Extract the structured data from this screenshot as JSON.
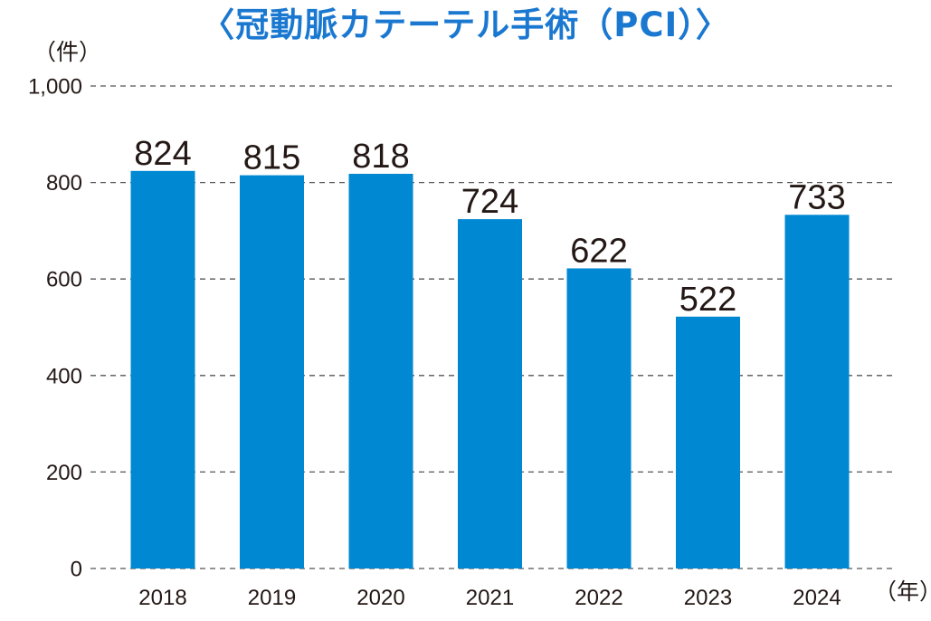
{
  "chart_data": {
    "type": "bar",
    "title": "〈冠動脈カテーテル手術（PCI）〉",
    "y_unit": "（件）",
    "x_unit": "（年）",
    "categories": [
      "2018",
      "2019",
      "2020",
      "2021",
      "2022",
      "2023",
      "2024"
    ],
    "values": [
      824,
      815,
      818,
      724,
      622,
      522,
      733
    ],
    "data_labels": [
      "824",
      "815",
      "818",
      "724",
      "622",
      "522",
      "733"
    ],
    "ylim": [
      0,
      1000
    ],
    "y_ticks": [
      0,
      200,
      400,
      600,
      800,
      1000
    ],
    "y_tick_labels": [
      "0",
      "200",
      "400",
      "600",
      "800",
      "1,000"
    ],
    "grid": "dashed horizontal",
    "legend": "none"
  },
  "colors": {
    "bar": "#0088d2",
    "title": "#1a78d0",
    "text": "#231815",
    "grid": "#555555"
  }
}
